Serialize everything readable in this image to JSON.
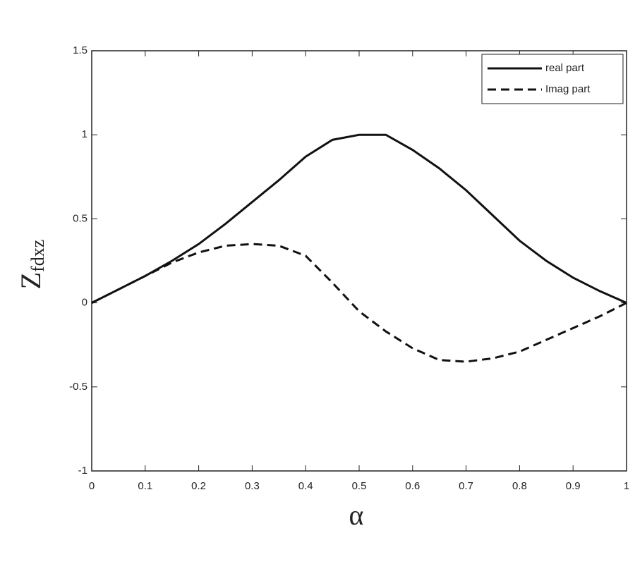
{
  "chart_data": {
    "type": "line",
    "xlabel": "α",
    "ylabel": {
      "main": "Z",
      "sub": "fdxz"
    },
    "x": [
      0,
      0.05,
      0.1,
      0.15,
      0.2,
      0.25,
      0.3,
      0.35,
      0.4,
      0.45,
      0.5,
      0.55,
      0.6,
      0.65,
      0.7,
      0.75,
      0.8,
      0.85,
      0.9,
      0.95,
      1
    ],
    "series": [
      {
        "name": "real part",
        "color": "#111111",
        "dashed": false,
        "values": [
          0,
          0.08,
          0.16,
          0.25,
          0.35,
          0.47,
          0.6,
          0.73,
          0.87,
          0.97,
          1.0,
          1.0,
          0.91,
          0.8,
          0.67,
          0.52,
          0.37,
          0.25,
          0.15,
          0.07,
          0
        ]
      },
      {
        "name": "Imag part",
        "color": "#111111",
        "dashed": true,
        "values": [
          0,
          0.08,
          0.16,
          0.24,
          0.3,
          0.34,
          0.35,
          0.34,
          0.28,
          0.12,
          -0.05,
          -0.17,
          -0.27,
          -0.34,
          -0.35,
          -0.33,
          -0.29,
          -0.22,
          -0.15,
          -0.08,
          0
        ]
      }
    ],
    "xlim": [
      0,
      1
    ],
    "xticks": [
      0,
      0.1,
      0.2,
      0.3,
      0.4,
      0.5,
      0.6,
      0.7,
      0.8,
      0.9,
      1
    ],
    "ylim": [
      -1,
      1.5
    ],
    "yticks": [
      -1,
      -0.5,
      0,
      0.5,
      1,
      1.5
    ],
    "legend": "top-right",
    "grid": false
  }
}
